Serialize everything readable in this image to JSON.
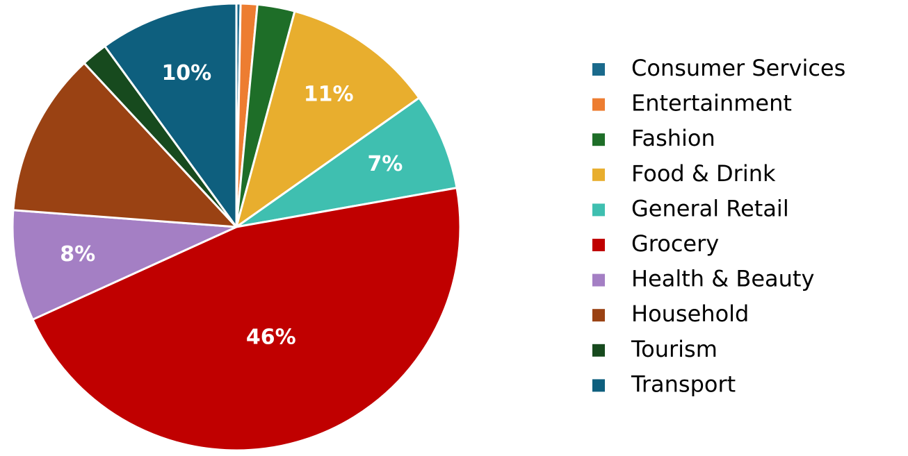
{
  "chart_data": {
    "type": "pie",
    "categories": [
      "Consumer Services",
      "Entertainment",
      "Fashion",
      "Food & Drink",
      "General Retail",
      "Grocery",
      "Health & Beauty",
      "Household",
      "Tourism",
      "Transport"
    ],
    "values": [
      0.3,
      1.2,
      2.7,
      11,
      7,
      46,
      8,
      11.9,
      1.9,
      10
    ],
    "value_labels": [
      null,
      null,
      null,
      "11%",
      "7%",
      "46%",
      "8%",
      null,
      null,
      "10%"
    ],
    "colors": [
      "#1a6a8c",
      "#ed7d31",
      "#1e6e28",
      "#e8ae2e",
      "#3fbfb0",
      "#c00000",
      "#a47fc4",
      "#9a4213",
      "#174a1e",
      "#0e5f7e"
    ],
    "legend": "right"
  }
}
